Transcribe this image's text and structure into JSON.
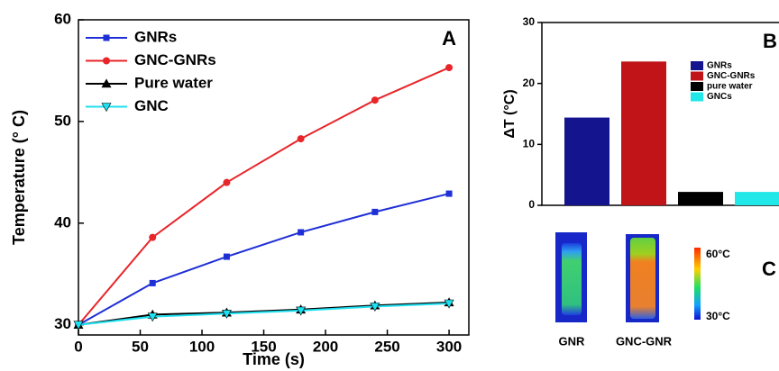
{
  "chart_data": [
    {
      "type": "line",
      "annotation": "A",
      "x_label": "Time (s)",
      "y_label": "Temperature (° C)",
      "x": [
        0,
        60,
        120,
        180,
        240,
        300
      ],
      "series": [
        {
          "name": "GNRs",
          "color": "#1f2fd6",
          "marker": "square",
          "values": [
            30,
            34.1,
            36.7,
            39.1,
            41.1,
            42.9
          ]
        },
        {
          "name": "GNC-GNRs",
          "color": "#e8262a",
          "marker": "circle",
          "values": [
            30,
            38.6,
            44,
            48.3,
            52.1,
            55.3
          ]
        },
        {
          "name": "Pure water",
          "color": "#000000",
          "marker": "triangle-up",
          "values": [
            30,
            31,
            31.2,
            31.5,
            31.9,
            32.2
          ]
        },
        {
          "name": "GNC",
          "color": "#1fe0f0",
          "marker": "triangle-down",
          "values": [
            30,
            30.8,
            31.1,
            31.4,
            31.8,
            32.1
          ]
        }
      ],
      "xlim": [
        0,
        316
      ],
      "xticks": [
        0,
        50,
        100,
        150,
        200,
        250,
        300
      ],
      "ylim": [
        29,
        60
      ],
      "yticks": [
        30,
        40,
        50,
        60
      ]
    },
    {
      "type": "bar",
      "annotation": "B",
      "y_label": "ΔT (°C)",
      "categories": [
        null
      ],
      "series": [
        {
          "name": "GNRs",
          "color": "#14148f",
          "values": [
            14.4
          ]
        },
        {
          "name": "GNC-GNRs",
          "color": "#c01418",
          "values": [
            23.6
          ]
        },
        {
          "name": "pure water",
          "color": "#000000",
          "values": [
            2.2
          ]
        },
        {
          "name": "GNCs",
          "color": "#20e8e8",
          "values": [
            2.2
          ]
        }
      ],
      "ylim": [
        0,
        30
      ],
      "yticks": [
        0,
        10,
        20,
        30
      ]
    }
  ],
  "panel_c": {
    "label": "C",
    "scale_max": "60°C",
    "scale_min": "30°C",
    "images": [
      "GNR",
      "GNC-GNR"
    ]
  }
}
